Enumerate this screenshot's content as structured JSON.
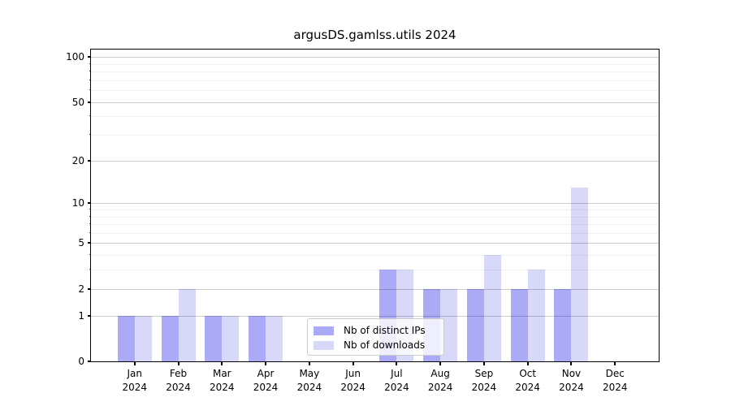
{
  "chart_data": {
    "type": "bar",
    "title": "argusDS.gamlss.utils 2024",
    "months": [
      "Jan",
      "Feb",
      "Mar",
      "Apr",
      "May",
      "Jun",
      "Jul",
      "Aug",
      "Sep",
      "Oct",
      "Nov",
      "Dec"
    ],
    "year": "2024",
    "series": [
      {
        "name": "Nb of distinct IPs",
        "color": "#aaaaf7",
        "values": [
          1,
          1,
          1,
          1,
          0,
          0,
          3,
          2,
          2,
          2,
          2,
          0
        ]
      },
      {
        "name": "Nb of downloads",
        "color": "#d8d8f8",
        "values": [
          1,
          2,
          1,
          1,
          0,
          0,
          3,
          2,
          4,
          3,
          13,
          0
        ]
      }
    ],
    "yticks": [
      0,
      1,
      2,
      5,
      10,
      20,
      50,
      100
    ],
    "minor_yticks": [
      3,
      4,
      6,
      7,
      8,
      9,
      30,
      40,
      60,
      70,
      80,
      90
    ],
    "scale": "log1p",
    "ylim": [
      0,
      112
    ],
    "grid": "on",
    "legend_position": "lower-center-inside"
  }
}
